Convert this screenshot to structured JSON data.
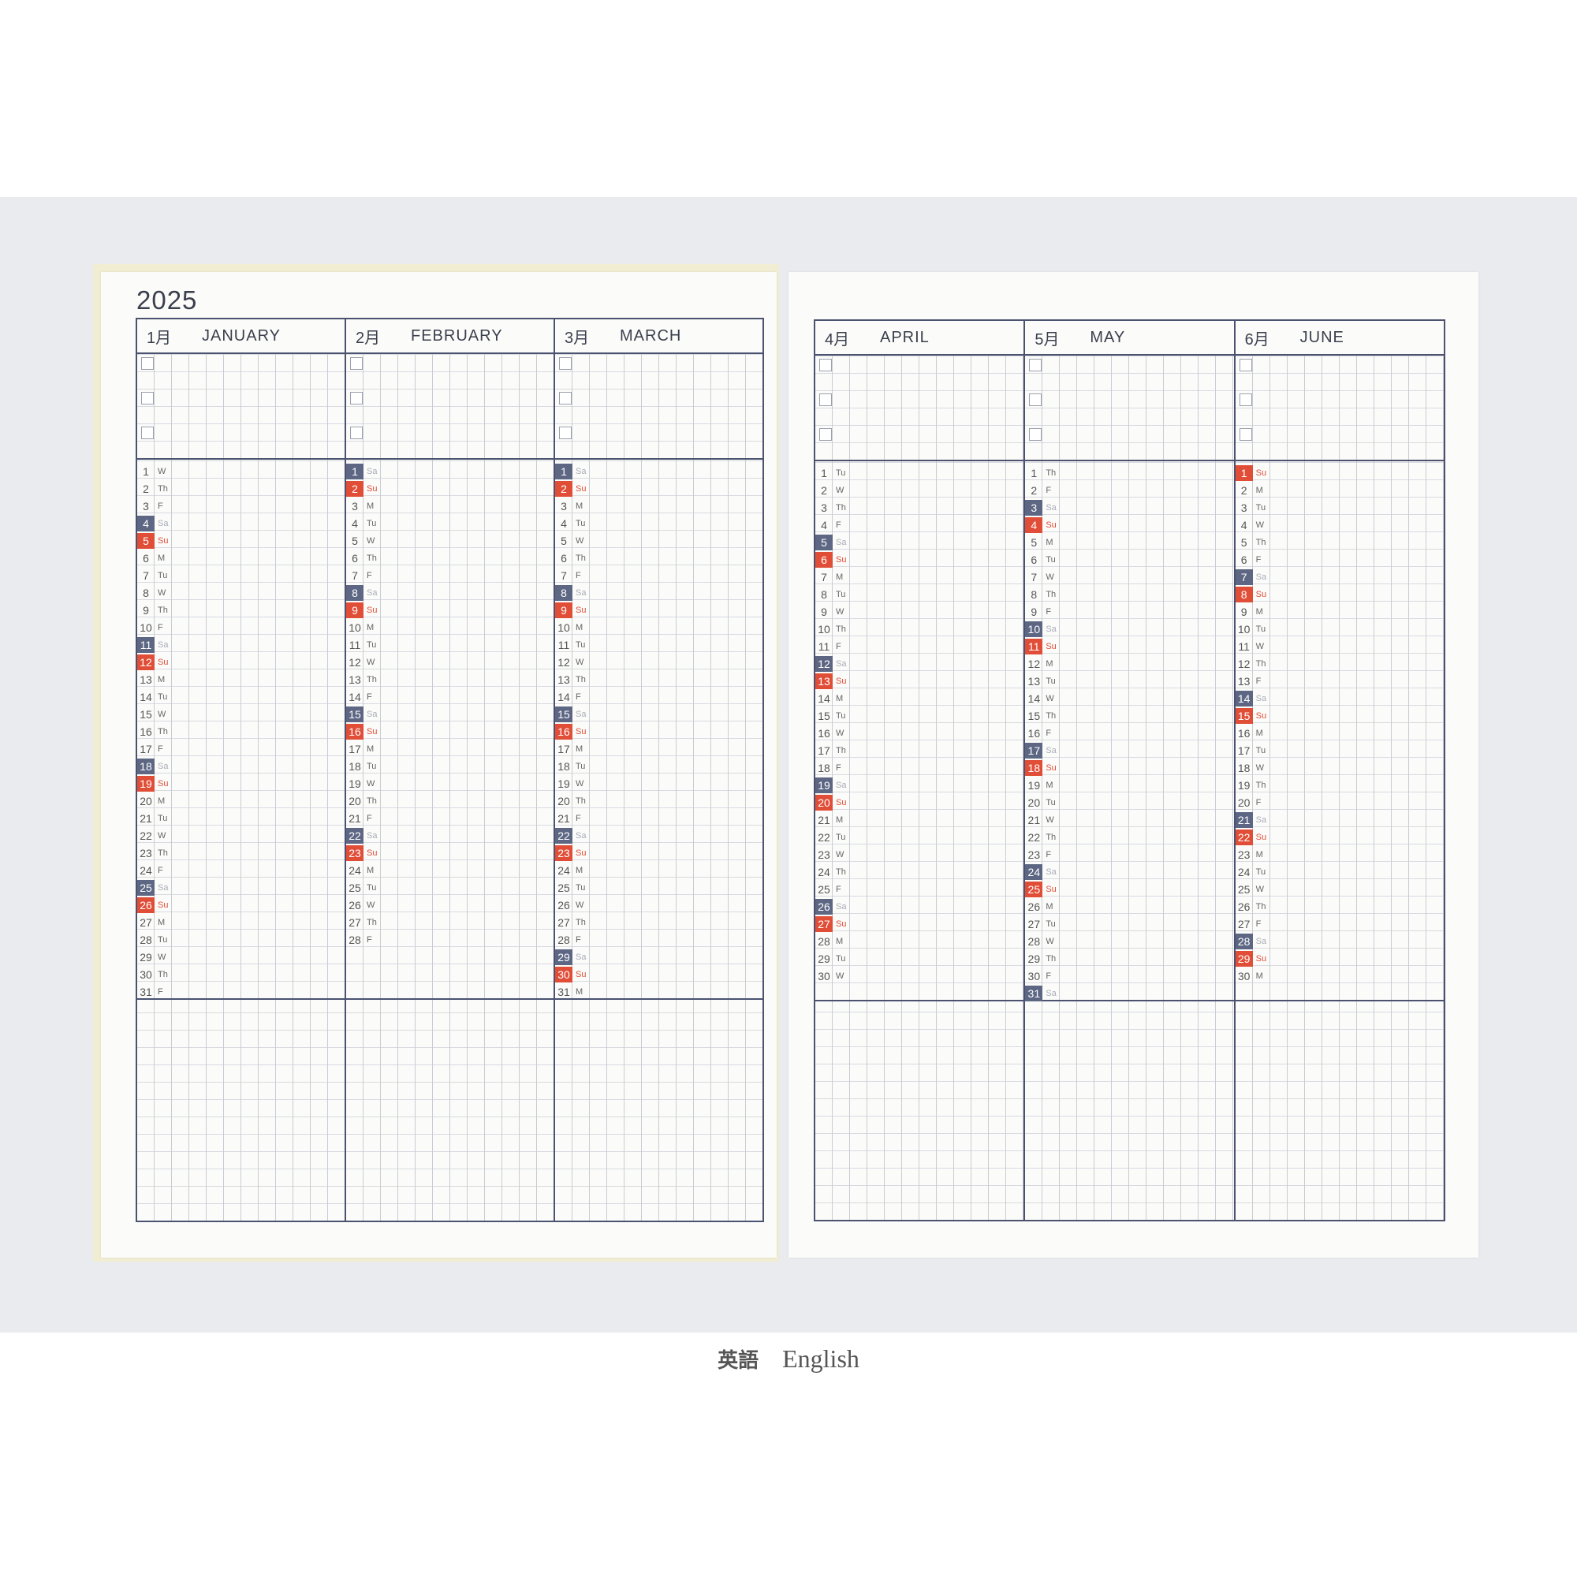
{
  "year": "2025",
  "weekdays": [
    "M",
    "Tu",
    "W",
    "Th",
    "F",
    "Sa",
    "Su"
  ],
  "colors": {
    "saturday": "#5d6784",
    "sunday": "#e04e38",
    "rule": "#4a5270"
  },
  "left_page": {
    "months": [
      {
        "kanji": "1月",
        "name": "JANUARY",
        "days": 31,
        "first_weekday": "W"
      },
      {
        "kanji": "2月",
        "name": "FEBRUARY",
        "days": 28,
        "first_weekday": "Sa"
      },
      {
        "kanji": "3月",
        "name": "MARCH",
        "days": 31,
        "first_weekday": "Sa"
      }
    ]
  },
  "right_page": {
    "months": [
      {
        "kanji": "4月",
        "name": "APRIL",
        "days": 30,
        "first_weekday": "Tu"
      },
      {
        "kanji": "5月",
        "name": "MAY",
        "days": 31,
        "first_weekday": "Th"
      },
      {
        "kanji": "6月",
        "name": "JUNE",
        "days": 30,
        "first_weekday": "Su"
      }
    ]
  },
  "caption": {
    "japanese": "英語",
    "english": "English"
  }
}
